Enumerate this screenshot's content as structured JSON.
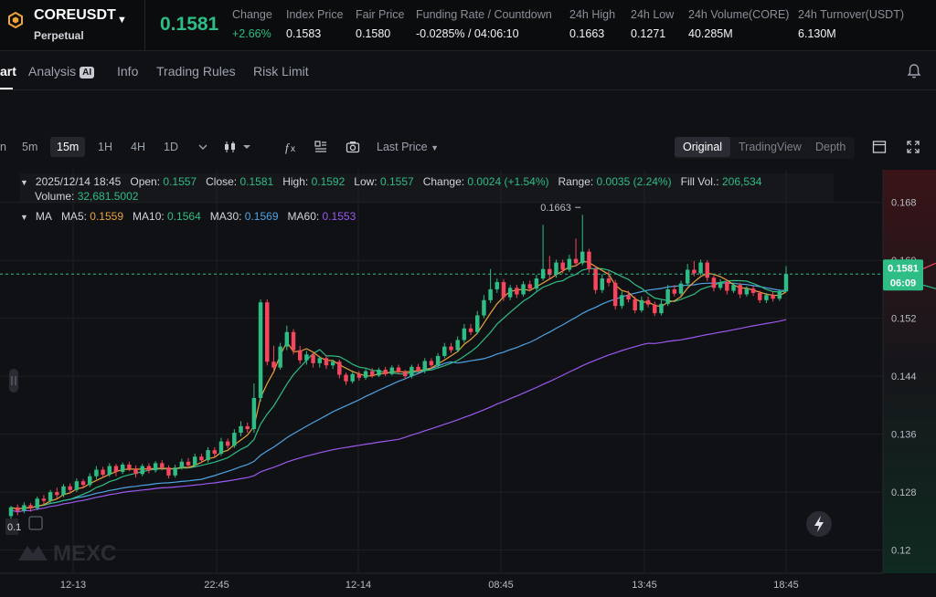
{
  "header": {
    "symbol": "COREUSDT",
    "contract_type": "Perpetual",
    "last_price": "0.1581",
    "stats": [
      {
        "label": "Change",
        "value": "+2.66%",
        "up": true
      },
      {
        "label": "Index Price",
        "value": "0.1583"
      },
      {
        "label": "Fair Price",
        "value": "0.1580"
      },
      {
        "label": "Funding Rate / Countdown",
        "value": "-0.0285% / 04:06:10"
      },
      {
        "label": "24h High",
        "value": "0.1663"
      },
      {
        "label": "24h Low",
        "value": "0.1271"
      },
      {
        "label": "24h Volume(CORE)",
        "value": "40.285M"
      },
      {
        "label": "24h Turnover(USDT)",
        "value": "6.130M"
      }
    ]
  },
  "tabs": {
    "chart_partial": "art",
    "analysis": "Analysis",
    "analysis_badge": "AI",
    "info": "Info",
    "trading_rules": "Trading Rules",
    "risk_limit": "Risk Limit"
  },
  "toolbar": {
    "timeframes": [
      "n",
      "5m",
      "15m",
      "1H",
      "4H",
      "1D"
    ],
    "active_timeframe": "15m",
    "price_type": "Last Price",
    "views": [
      "Original",
      "TradingView",
      "Depth"
    ],
    "active_view": "Original"
  },
  "ohlc": {
    "datetime": "2025/12/14 18:45",
    "open_label": "Open:",
    "open": "0.1557",
    "close_label": "Close:",
    "close": "0.1581",
    "high_label": "High:",
    "high": "0.1592",
    "low_label": "Low:",
    "low": "0.1557",
    "change_label": "Change:",
    "change": "0.0024 (+1.54%)",
    "range_label": "Range:",
    "range": "0.0035 (2.24%)",
    "fillvol_label": "Fill Vol.:",
    "fillvol": "206,534",
    "volume_label": "Volume:",
    "volume": "32,681.5002"
  },
  "ma": {
    "label": "MA",
    "ma5_label": "MA5:",
    "ma5": "0.1559",
    "ma10_label": "MA10:",
    "ma10": "0.1564",
    "ma30_label": "MA30:",
    "ma30": "0.1569",
    "ma60_label": "MA60:",
    "ma60": "0.1553"
  },
  "chart_data": {
    "type": "candlestick",
    "y_ticks": [
      "0.168",
      "0.160",
      "0.152",
      "0.144",
      "0.136",
      "0.128",
      "0.12"
    ],
    "y_tick_values": [
      0.168,
      0.16,
      0.152,
      0.144,
      0.136,
      0.128,
      0.12
    ],
    "ylim": [
      0.1168,
      0.1725
    ],
    "x_ticks": [
      "12-13",
      "22:45",
      "12-14",
      "08:45",
      "13:45",
      "18:45"
    ],
    "high_marker": "0.1663",
    "high_marker_value": 0.1663,
    "price_tag": "0.1581",
    "countdown_tag": "06:09",
    "left_partial_label": "0.1",
    "watermark": "MEXC",
    "colors": {
      "up": "#2ebd85",
      "down": "#f6465d",
      "ma5": "#e9a23b",
      "ma10": "#2ebd85",
      "ma30": "#4ea3e6",
      "ma60": "#9b59f0"
    },
    "candles": [
      [
        0.1247,
        0.1259,
        0.1261,
        0.1242
      ],
      [
        0.1259,
        0.1254,
        0.1263,
        0.1248
      ],
      [
        0.1254,
        0.1262,
        0.1266,
        0.1251
      ],
      [
        0.1262,
        0.1258,
        0.1265,
        0.1253
      ],
      [
        0.1258,
        0.1271,
        0.1274,
        0.1255
      ],
      [
        0.1271,
        0.1268,
        0.1276,
        0.1263
      ],
      [
        0.1268,
        0.128,
        0.1283,
        0.1265
      ],
      [
        0.128,
        0.1276,
        0.1286,
        0.1271
      ],
      [
        0.1276,
        0.1288,
        0.1291,
        0.1273
      ],
      [
        0.1288,
        0.1283,
        0.1292,
        0.1279
      ],
      [
        0.1283,
        0.1295,
        0.1299,
        0.128
      ],
      [
        0.1295,
        0.129,
        0.1298,
        0.1285
      ],
      [
        0.129,
        0.1302,
        0.1306,
        0.1287
      ],
      [
        0.1302,
        0.1311,
        0.1316,
        0.1298
      ],
      [
        0.1311,
        0.1304,
        0.1315,
        0.13
      ],
      [
        0.1304,
        0.1316,
        0.132,
        0.1301
      ],
      [
        0.1316,
        0.1308,
        0.1319,
        0.1302
      ],
      [
        0.1308,
        0.1318,
        0.1321,
        0.1305
      ],
      [
        0.1318,
        0.1312,
        0.1322,
        0.1309
      ],
      [
        0.1312,
        0.1305,
        0.1317,
        0.13
      ],
      [
        0.1305,
        0.1316,
        0.1319,
        0.1302
      ],
      [
        0.1316,
        0.131,
        0.132,
        0.1306
      ],
      [
        0.131,
        0.132,
        0.1323,
        0.1307
      ],
      [
        0.132,
        0.1314,
        0.1324,
        0.131
      ],
      [
        0.1314,
        0.1303,
        0.1317,
        0.1299
      ],
      [
        0.1303,
        0.1314,
        0.1318,
        0.13
      ],
      [
        0.1314,
        0.1322,
        0.1326,
        0.1311
      ],
      [
        0.1322,
        0.1317,
        0.1327,
        0.1313
      ],
      [
        0.1317,
        0.1329,
        0.1333,
        0.1315
      ],
      [
        0.1329,
        0.1324,
        0.1333,
        0.132
      ],
      [
        0.1324,
        0.1338,
        0.1342,
        0.1321
      ],
      [
        0.1338,
        0.1333,
        0.1342,
        0.1329
      ],
      [
        0.1333,
        0.135,
        0.1355,
        0.133
      ],
      [
        0.135,
        0.1344,
        0.1354,
        0.134
      ],
      [
        0.1344,
        0.1362,
        0.1367,
        0.1341
      ],
      [
        0.1362,
        0.1371,
        0.1378,
        0.1357
      ],
      [
        0.1371,
        0.1367,
        0.1376,
        0.1362
      ],
      [
        0.1367,
        0.141,
        0.143,
        0.1362
      ],
      [
        0.141,
        0.1542,
        0.1546,
        0.1405
      ],
      [
        0.1542,
        0.146,
        0.1546,
        0.1455
      ],
      [
        0.146,
        0.1452,
        0.1482,
        0.1447
      ],
      [
        0.1452,
        0.1481,
        0.1486,
        0.1449
      ],
      [
        0.1481,
        0.1501,
        0.151,
        0.1476
      ],
      [
        0.1501,
        0.1476,
        0.1505,
        0.147
      ],
      [
        0.1476,
        0.1462,
        0.1482,
        0.1457
      ],
      [
        0.1462,
        0.147,
        0.1475,
        0.1456
      ],
      [
        0.147,
        0.1458,
        0.1473,
        0.1452
      ],
      [
        0.1458,
        0.1465,
        0.1468,
        0.1452
      ],
      [
        0.1465,
        0.1455,
        0.1469,
        0.145
      ],
      [
        0.1455,
        0.146,
        0.1463,
        0.145
      ],
      [
        0.146,
        0.1442,
        0.1463,
        0.1437
      ],
      [
        0.1442,
        0.1433,
        0.1445,
        0.1428
      ],
      [
        0.1433,
        0.1443,
        0.1446,
        0.143
      ],
      [
        0.1443,
        0.1438,
        0.1447,
        0.1434
      ],
      [
        0.1438,
        0.1447,
        0.145,
        0.1435
      ],
      [
        0.1447,
        0.1441,
        0.1451,
        0.1438
      ],
      [
        0.1441,
        0.1449,
        0.1452,
        0.1439
      ],
      [
        0.1449,
        0.1443,
        0.1453,
        0.144
      ],
      [
        0.1443,
        0.1452,
        0.1455,
        0.1441
      ],
      [
        0.1452,
        0.1446,
        0.1456,
        0.1443
      ],
      [
        0.1446,
        0.144,
        0.1449,
        0.1436
      ],
      [
        0.144,
        0.1453,
        0.1456,
        0.1437
      ],
      [
        0.1453,
        0.1447,
        0.1457,
        0.1444
      ],
      [
        0.1447,
        0.1461,
        0.1465,
        0.1444
      ],
      [
        0.1461,
        0.1455,
        0.1465,
        0.1451
      ],
      [
        0.1455,
        0.1468,
        0.1472,
        0.1452
      ],
      [
        0.1468,
        0.1481,
        0.1486,
        0.1465
      ],
      [
        0.1481,
        0.1476,
        0.1486,
        0.1472
      ],
      [
        0.1476,
        0.149,
        0.1495,
        0.1473
      ],
      [
        0.149,
        0.1506,
        0.1512,
        0.1486
      ],
      [
        0.1506,
        0.1501,
        0.1512,
        0.1497
      ],
      [
        0.1501,
        0.1524,
        0.153,
        0.1498
      ],
      [
        0.1524,
        0.1545,
        0.1552,
        0.152
      ],
      [
        0.1545,
        0.156,
        0.1588,
        0.1541
      ],
      [
        0.156,
        0.157,
        0.1575,
        0.1555
      ],
      [
        0.157,
        0.1549,
        0.1574,
        0.1544
      ],
      [
        0.1549,
        0.1562,
        0.1566,
        0.1545
      ],
      [
        0.1562,
        0.1553,
        0.1566,
        0.1548
      ],
      [
        0.1553,
        0.1567,
        0.1571,
        0.155
      ],
      [
        0.1567,
        0.1561,
        0.1572,
        0.1557
      ],
      [
        0.1561,
        0.1575,
        0.158,
        0.1558
      ],
      [
        0.1575,
        0.1588,
        0.1649,
        0.1572
      ],
      [
        0.1588,
        0.158,
        0.1606,
        0.1575
      ],
      [
        0.158,
        0.1597,
        0.1601,
        0.1576
      ],
      [
        0.1597,
        0.1587,
        0.1601,
        0.1582
      ],
      [
        0.1587,
        0.1602,
        0.1608,
        0.1584
      ],
      [
        0.1602,
        0.1596,
        0.163,
        0.1592
      ],
      [
        0.1596,
        0.1612,
        0.1663,
        0.1593
      ],
      [
        0.1612,
        0.1588,
        0.1616,
        0.1583
      ],
      [
        0.1588,
        0.1559,
        0.1592,
        0.1554
      ],
      [
        0.1559,
        0.1575,
        0.1581,
        0.1555
      ],
      [
        0.1575,
        0.1569,
        0.1586,
        0.1564
      ],
      [
        0.1569,
        0.1537,
        0.1573,
        0.1532
      ],
      [
        0.1537,
        0.1552,
        0.1557,
        0.1533
      ],
      [
        0.1552,
        0.1546,
        0.1558,
        0.1542
      ],
      [
        0.1546,
        0.1531,
        0.155,
        0.1527
      ],
      [
        0.1531,
        0.1545,
        0.155,
        0.1528
      ],
      [
        0.1545,
        0.1539,
        0.155,
        0.1535
      ],
      [
        0.1539,
        0.1527,
        0.1543,
        0.1523
      ],
      [
        0.1527,
        0.154,
        0.1546,
        0.1524
      ],
      [
        0.154,
        0.156,
        0.1566,
        0.1537
      ],
      [
        0.156,
        0.1554,
        0.1566,
        0.155
      ],
      [
        0.1554,
        0.1568,
        0.1572,
        0.1551
      ],
      [
        0.1568,
        0.1587,
        0.1595,
        0.1564
      ],
      [
        0.1587,
        0.1582,
        0.1599,
        0.1578
      ],
      [
        0.1582,
        0.1597,
        0.1601,
        0.1579
      ],
      [
        0.1597,
        0.1576,
        0.16,
        0.1571
      ],
      [
        0.1576,
        0.1562,
        0.158,
        0.1557
      ],
      [
        0.1562,
        0.157,
        0.1574,
        0.1559
      ],
      [
        0.157,
        0.1558,
        0.1573,
        0.1553
      ],
      [
        0.1558,
        0.1566,
        0.1569,
        0.1555
      ],
      [
        0.1566,
        0.1553,
        0.1569,
        0.1548
      ],
      [
        0.1553,
        0.1561,
        0.1564,
        0.155
      ],
      [
        0.1561,
        0.1555,
        0.1565,
        0.1551
      ],
      [
        0.1555,
        0.1545,
        0.1558,
        0.1541
      ],
      [
        0.1545,
        0.1552,
        0.1555,
        0.1541
      ],
      [
        0.1552,
        0.1547,
        0.1556,
        0.1543
      ],
      [
        0.1547,
        0.1557,
        0.156,
        0.1544
      ],
      [
        0.1557,
        0.1581,
        0.1592,
        0.1557
      ]
    ]
  }
}
